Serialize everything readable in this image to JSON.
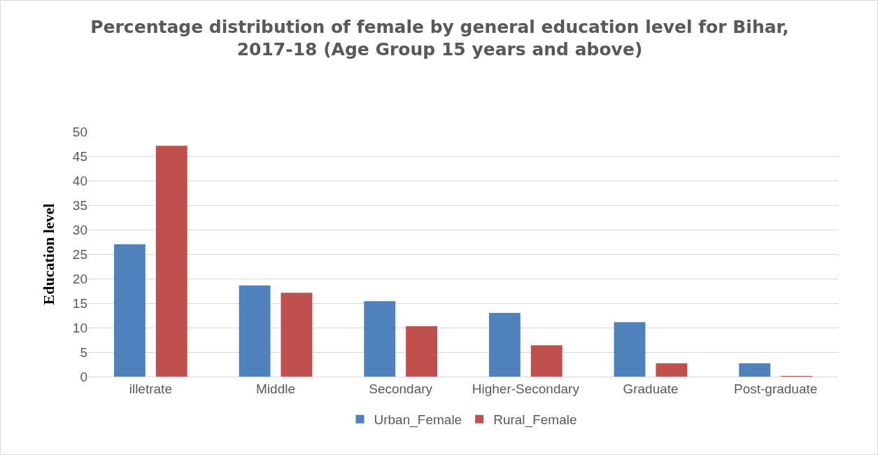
{
  "chart_data": {
    "type": "bar",
    "title": "Percentage distribution of female by general education level for Bihar,\n2017-18 (Age Group 15 years and above)",
    "ylabel": "Education level",
    "categories": [
      "illetrate",
      "Middle",
      "Secondary",
      "Higher-Secondary",
      "Graduate",
      "Post-graduate"
    ],
    "series": [
      {
        "name": "Urban_Female",
        "color": "#4f81bd",
        "values": [
          27.0,
          18.6,
          15.4,
          13.0,
          11.1,
          2.7
        ]
      },
      {
        "name": "Rural_Female",
        "color": "#c0504d",
        "values": [
          47.1,
          17.1,
          10.3,
          6.4,
          2.7,
          0.1
        ]
      }
    ],
    "ylim": [
      0,
      50
    ],
    "yticks": [
      0,
      5,
      10,
      15,
      20,
      25,
      30,
      35,
      40,
      45,
      50
    ],
    "grid": "y",
    "legend": "bottom"
  }
}
